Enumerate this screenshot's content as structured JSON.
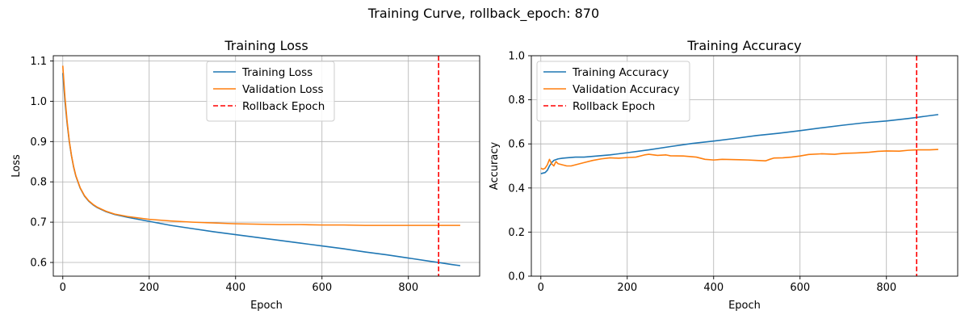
{
  "figure": {
    "suptitle": "Training Curve, rollback_epoch: 870"
  },
  "chart_data": [
    {
      "type": "line",
      "title": "Training Loss",
      "xlabel": "Epoch",
      "ylabel": "Loss",
      "xlim": [
        -22,
        965
      ],
      "ylim": [
        0.566,
        1.113
      ],
      "xticks": [
        0,
        200,
        400,
        600,
        800
      ],
      "yticks": [
        0.6,
        0.7,
        0.8,
        0.9,
        1.0,
        1.1
      ],
      "ytick_decimals": 1,
      "grid": true,
      "legend": "top-center",
      "rollback_epoch": 870,
      "series": [
        {
          "name": "Training Loss",
          "color": "#1f77b4",
          "x": [
            0,
            5,
            10,
            15,
            20,
            25,
            30,
            40,
            50,
            60,
            70,
            80,
            100,
            120,
            150,
            200,
            250,
            300,
            350,
            400,
            450,
            500,
            550,
            600,
            650,
            700,
            750,
            800,
            850,
            870,
            900,
            920
          ],
          "y": [
            1.07,
            1.0,
            0.945,
            0.9,
            0.865,
            0.837,
            0.815,
            0.785,
            0.765,
            0.752,
            0.743,
            0.736,
            0.726,
            0.719,
            0.712,
            0.702,
            0.692,
            0.684,
            0.676,
            0.669,
            0.662,
            0.655,
            0.648,
            0.641,
            0.634,
            0.626,
            0.619,
            0.611,
            0.603,
            0.6,
            0.595,
            0.592
          ]
        },
        {
          "name": "Validation Loss",
          "color": "#ff7f0e",
          "x": [
            0,
            5,
            10,
            15,
            20,
            25,
            30,
            40,
            50,
            60,
            70,
            80,
            100,
            120,
            150,
            200,
            250,
            300,
            350,
            400,
            450,
            500,
            550,
            600,
            650,
            700,
            750,
            800,
            850,
            870,
            900,
            920
          ],
          "y": [
            1.088,
            1.01,
            0.95,
            0.902,
            0.866,
            0.838,
            0.816,
            0.786,
            0.766,
            0.753,
            0.744,
            0.737,
            0.727,
            0.72,
            0.714,
            0.707,
            0.703,
            0.7,
            0.698,
            0.696,
            0.695,
            0.694,
            0.694,
            0.693,
            0.693,
            0.692,
            0.692,
            0.692,
            0.692,
            0.692,
            0.692,
            0.692
          ]
        }
      ]
    },
    {
      "type": "line",
      "title": "Training Accuracy",
      "xlabel": "Epoch",
      "ylabel": "Accuracy",
      "xlim": [
        -22,
        965
      ],
      "ylim": [
        0.0,
        1.0
      ],
      "xticks": [
        0,
        200,
        400,
        600,
        800
      ],
      "yticks": [
        0.0,
        0.2,
        0.4,
        0.6,
        0.8,
        1.0
      ],
      "ytick_decimals": 1,
      "grid": true,
      "legend": "top-left",
      "rollback_epoch": 870,
      "series": [
        {
          "name": "Training Accuracy",
          "color": "#1f77b4",
          "x": [
            0,
            10,
            15,
            20,
            25,
            30,
            40,
            50,
            60,
            80,
            100,
            130,
            160,
            200,
            250,
            300,
            350,
            400,
            450,
            500,
            550,
            600,
            650,
            700,
            750,
            800,
            850,
            870,
            900,
            920
          ],
          "y": [
            0.465,
            0.47,
            0.48,
            0.5,
            0.515,
            0.525,
            0.532,
            0.535,
            0.537,
            0.54,
            0.54,
            0.545,
            0.55,
            0.56,
            0.573,
            0.588,
            0.602,
            0.613,
            0.625,
            0.638,
            0.648,
            0.66,
            0.673,
            0.685,
            0.696,
            0.704,
            0.715,
            0.72,
            0.728,
            0.733
          ]
        },
        {
          "name": "Validation Accuracy",
          "color": "#ff7f0e",
          "x": [
            0,
            5,
            10,
            15,
            20,
            25,
            30,
            35,
            40,
            50,
            60,
            70,
            80,
            90,
            100,
            120,
            140,
            160,
            180,
            200,
            220,
            240,
            250,
            270,
            290,
            300,
            330,
            360,
            380,
            400,
            420,
            440,
            460,
            480,
            500,
            520,
            530,
            540,
            560,
            580,
            600,
            620,
            650,
            680,
            700,
            730,
            760,
            780,
            800,
            830,
            850,
            870,
            900,
            920
          ],
          "y": [
            0.49,
            0.485,
            0.49,
            0.505,
            0.53,
            0.51,
            0.5,
            0.52,
            0.51,
            0.505,
            0.5,
            0.5,
            0.505,
            0.51,
            0.515,
            0.525,
            0.532,
            0.537,
            0.535,
            0.538,
            0.54,
            0.55,
            0.553,
            0.548,
            0.55,
            0.546,
            0.545,
            0.54,
            0.53,
            0.527,
            0.53,
            0.529,
            0.528,
            0.527,
            0.525,
            0.523,
            0.53,
            0.536,
            0.537,
            0.54,
            0.545,
            0.552,
            0.555,
            0.553,
            0.557,
            0.559,
            0.562,
            0.566,
            0.568,
            0.567,
            0.571,
            0.573,
            0.573,
            0.575
          ]
        }
      ]
    }
  ]
}
